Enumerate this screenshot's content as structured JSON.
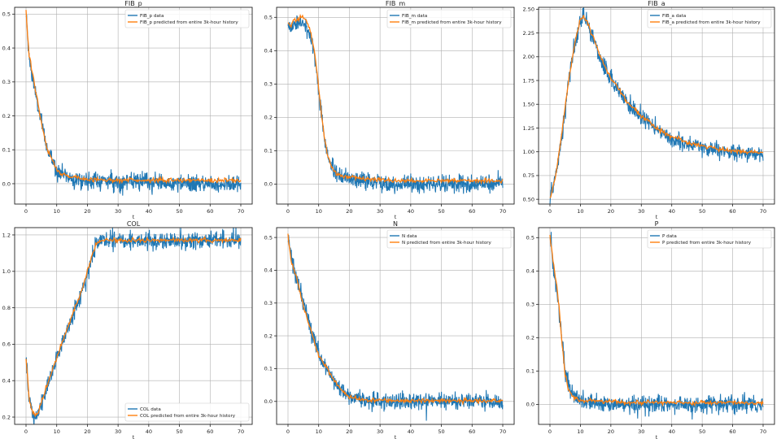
{
  "colors": {
    "data": "#1f77b4",
    "pred": "#ff7f0e",
    "grid": "#b0b0b0"
  },
  "x_axis": {
    "label": "t",
    "ticks": [
      0,
      10,
      20,
      30,
      40,
      50,
      60,
      70
    ],
    "xlim": [
      0,
      70
    ]
  },
  "chart_data": [
    {
      "type": "line",
      "title": "FIB_p",
      "xlabel": "t",
      "ylabel": "",
      "ylim": [
        -0.06,
        0.52
      ],
      "yticks": [
        0.0,
        0.1,
        0.2,
        0.3,
        0.4,
        0.5
      ],
      "ytick_decimals": 1,
      "grid": true,
      "legend_position": "top-right",
      "series": [
        {
          "name": "FIB_p data",
          "x": [
            0,
            1,
            2,
            3,
            4,
            5,
            6,
            7,
            8,
            9,
            10,
            12,
            14,
            16,
            18,
            20,
            25,
            30,
            35,
            40,
            45,
            50,
            55,
            60,
            65,
            70
          ],
          "y": [
            0.5,
            0.37,
            0.32,
            0.27,
            0.22,
            0.18,
            0.14,
            0.1,
            0.08,
            0.06,
            0.04,
            0.03,
            0.02,
            0.015,
            0.01,
            0.01,
            0.01,
            0.005,
            0.005,
            0.005,
            0.0,
            0.0,
            0.0,
            0.0,
            0.0,
            0.0
          ]
        },
        {
          "name": "FIB_p predicted from entire 3k-hour history",
          "x": [
            0,
            1,
            2,
            3,
            4,
            5,
            6,
            7,
            8,
            9,
            10,
            12,
            14,
            16,
            18,
            20,
            25,
            30,
            35,
            40,
            45,
            50,
            55,
            60,
            65,
            70
          ],
          "y": [
            0.51,
            0.38,
            0.33,
            0.28,
            0.23,
            0.18,
            0.14,
            0.1,
            0.08,
            0.06,
            0.04,
            0.03,
            0.02,
            0.018,
            0.015,
            0.013,
            0.012,
            0.011,
            0.011,
            0.01,
            0.01,
            0.01,
            0.01,
            0.01,
            0.01,
            0.01
          ]
        }
      ]
    },
    {
      "type": "line",
      "title": "FIB_m",
      "xlabel": "t",
      "ylabel": "",
      "ylim": [
        -0.06,
        0.53
      ],
      "yticks": [
        0.0,
        0.1,
        0.2,
        0.3,
        0.4,
        0.5
      ],
      "ytick_decimals": 1,
      "grid": true,
      "legend_position": "top-right",
      "series": [
        {
          "name": "FIB_m data",
          "x": [
            0,
            1,
            2,
            3,
            4,
            5,
            6,
            7,
            8,
            9,
            10,
            11,
            12,
            13,
            14,
            15,
            16,
            18,
            20,
            25,
            30,
            35,
            40,
            45,
            50,
            55,
            60,
            65,
            70
          ],
          "y": [
            0.48,
            0.47,
            0.48,
            0.48,
            0.49,
            0.48,
            0.47,
            0.45,
            0.42,
            0.36,
            0.28,
            0.2,
            0.13,
            0.08,
            0.05,
            0.04,
            0.03,
            0.02,
            0.015,
            0.01,
            0.005,
            0.0,
            0.0,
            0.0,
            0.0,
            0.0,
            0.0,
            0.0,
            0.0
          ]
        },
        {
          "name": "FIB_m predicted from entire 3k-hour history",
          "x": [
            0,
            1,
            2,
            3,
            4,
            5,
            6,
            7,
            8,
            9,
            10,
            11,
            12,
            13,
            14,
            15,
            16,
            18,
            20,
            25,
            30,
            35,
            40,
            45,
            50,
            55,
            60,
            65,
            70
          ],
          "y": [
            0.48,
            0.48,
            0.49,
            0.49,
            0.5,
            0.5,
            0.49,
            0.47,
            0.43,
            0.37,
            0.29,
            0.2,
            0.13,
            0.08,
            0.055,
            0.04,
            0.03,
            0.025,
            0.02,
            0.015,
            0.012,
            0.01,
            0.01,
            0.01,
            0.01,
            0.01,
            0.01,
            0.01,
            0.01
          ]
        }
      ]
    },
    {
      "type": "line",
      "title": "FIB_a",
      "xlabel": "t",
      "ylabel": "",
      "ylim": [
        0.45,
        2.52
      ],
      "yticks": [
        0.5,
        0.75,
        1.0,
        1.25,
        1.5,
        1.75,
        2.0,
        2.25,
        2.5
      ],
      "ytick_decimals": 2,
      "grid": true,
      "legend_position": "top-right",
      "series": [
        {
          "name": "FIB_a data",
          "x": [
            0,
            2,
            4,
            6,
            8,
            10,
            11,
            12,
            14,
            16,
            18,
            20,
            25,
            30,
            35,
            40,
            45,
            50,
            55,
            60,
            65,
            70
          ],
          "y": [
            0.5,
            0.75,
            1.2,
            1.7,
            2.1,
            2.37,
            2.4,
            2.36,
            2.2,
            2.03,
            1.88,
            1.76,
            1.52,
            1.36,
            1.23,
            1.14,
            1.08,
            1.04,
            1.01,
            0.99,
            0.98,
            0.98
          ]
        },
        {
          "name": "FIB_a predicted from entire 3k-hour history",
          "x": [
            0,
            2,
            4,
            6,
            8,
            10,
            11,
            12,
            14,
            16,
            18,
            20,
            25,
            30,
            35,
            40,
            45,
            50,
            55,
            60,
            65,
            70
          ],
          "y": [
            0.5,
            0.77,
            1.22,
            1.72,
            2.12,
            2.39,
            2.42,
            2.38,
            2.22,
            2.05,
            1.9,
            1.78,
            1.54,
            1.38,
            1.25,
            1.16,
            1.1,
            1.06,
            1.03,
            1.01,
            1.0,
            0.99
          ]
        }
      ]
    },
    {
      "type": "line",
      "title": "COL",
      "xlabel": "t",
      "ylabel": "",
      "ylim": [
        0.16,
        1.24
      ],
      "yticks": [
        0.2,
        0.4,
        0.6,
        0.8,
        1.0,
        1.2
      ],
      "ytick_decimals": 1,
      "grid": true,
      "legend_position": "bottom-right",
      "series": [
        {
          "name": "COL data",
          "x": [
            0,
            1,
            2,
            3,
            4,
            6,
            8,
            10,
            12,
            14,
            16,
            18,
            20,
            22,
            23,
            24,
            26,
            30,
            35,
            40,
            45,
            50,
            55,
            60,
            65,
            70
          ],
          "y": [
            0.52,
            0.3,
            0.22,
            0.2,
            0.22,
            0.32,
            0.42,
            0.52,
            0.61,
            0.7,
            0.79,
            0.88,
            0.99,
            1.1,
            1.15,
            1.17,
            1.17,
            1.17,
            1.17,
            1.17,
            1.17,
            1.17,
            1.17,
            1.17,
            1.17,
            1.17
          ]
        },
        {
          "name": "COL predicted from entire 3k-hour history",
          "x": [
            0,
            1,
            2,
            3,
            4,
            6,
            8,
            10,
            12,
            14,
            16,
            18,
            20,
            22,
            23,
            24,
            26,
            30,
            35,
            40,
            45,
            50,
            55,
            60,
            65,
            70
          ],
          "y": [
            0.53,
            0.31,
            0.23,
            0.21,
            0.23,
            0.33,
            0.43,
            0.53,
            0.62,
            0.71,
            0.8,
            0.89,
            1.0,
            1.11,
            1.15,
            1.17,
            1.17,
            1.17,
            1.17,
            1.17,
            1.17,
            1.17,
            1.17,
            1.17,
            1.17,
            1.17
          ]
        }
      ]
    },
    {
      "type": "line",
      "title": "N",
      "xlabel": "t",
      "ylabel": "",
      "ylim": [
        -0.07,
        0.53
      ],
      "yticks": [
        0.0,
        0.1,
        0.2,
        0.3,
        0.4,
        0.5
      ],
      "ytick_decimals": 1,
      "grid": true,
      "legend_position": "top-right",
      "series": [
        {
          "name": "N data",
          "x": [
            0,
            1,
            2,
            3,
            4,
            5,
            6,
            8,
            10,
            12,
            14,
            16,
            18,
            20,
            25,
            30,
            35,
            40,
            45,
            50,
            55,
            60,
            65,
            70
          ],
          "y": [
            0.5,
            0.44,
            0.4,
            0.37,
            0.34,
            0.3,
            0.27,
            0.2,
            0.15,
            0.11,
            0.08,
            0.05,
            0.03,
            0.015,
            0.005,
            0.0,
            0.0,
            0.0,
            0.0,
            0.0,
            0.0,
            0.0,
            0.0,
            0.0
          ]
        },
        {
          "name": "N predicted from entire 3k-hour history",
          "x": [
            0,
            1,
            2,
            3,
            4,
            5,
            6,
            8,
            10,
            12,
            14,
            16,
            18,
            20,
            25,
            30,
            35,
            40,
            45,
            50,
            55,
            60,
            65,
            70
          ],
          "y": [
            0.51,
            0.43,
            0.4,
            0.37,
            0.33,
            0.29,
            0.26,
            0.2,
            0.14,
            0.11,
            0.08,
            0.05,
            0.03,
            0.012,
            0.005,
            0.003,
            0.002,
            0.002,
            0.002,
            0.002,
            0.002,
            0.002,
            0.002,
            0.002
          ]
        }
      ]
    },
    {
      "type": "line",
      "title": "P",
      "xlabel": "t",
      "ylabel": "",
      "ylim": [
        -0.06,
        0.53
      ],
      "yticks": [
        0.0,
        0.1,
        0.2,
        0.3,
        0.4,
        0.5
      ],
      "ytick_decimals": 1,
      "grid": true,
      "legend_position": "top-right",
      "series": [
        {
          "name": "P data",
          "x": [
            0,
            1,
            2,
            3,
            4,
            5,
            6,
            7,
            8,
            9,
            10,
            12,
            14,
            16,
            18,
            20,
            25,
            30,
            35,
            40,
            45,
            50,
            55,
            60,
            65,
            70
          ],
          "y": [
            0.5,
            0.42,
            0.36,
            0.28,
            0.18,
            0.1,
            0.06,
            0.04,
            0.025,
            0.015,
            0.01,
            0.01,
            0.005,
            0.005,
            0.0,
            0.0,
            0.0,
            0.0,
            0.0,
            0.0,
            0.0,
            0.0,
            0.0,
            0.0,
            0.0,
            0.0
          ]
        },
        {
          "name": "P predicted from entire 3k-hour history",
          "x": [
            0,
            1,
            2,
            3,
            4,
            5,
            6,
            7,
            8,
            9,
            10,
            12,
            14,
            16,
            18,
            20,
            25,
            30,
            35,
            40,
            45,
            50,
            55,
            60,
            65,
            70
          ],
          "y": [
            0.51,
            0.43,
            0.37,
            0.29,
            0.18,
            0.09,
            0.05,
            0.03,
            0.02,
            0.015,
            0.012,
            0.01,
            0.01,
            0.01,
            0.008,
            0.008,
            0.006,
            0.006,
            0.005,
            0.005,
            0.005,
            0.005,
            0.005,
            0.005,
            0.005,
            0.005
          ]
        }
      ]
    }
  ]
}
